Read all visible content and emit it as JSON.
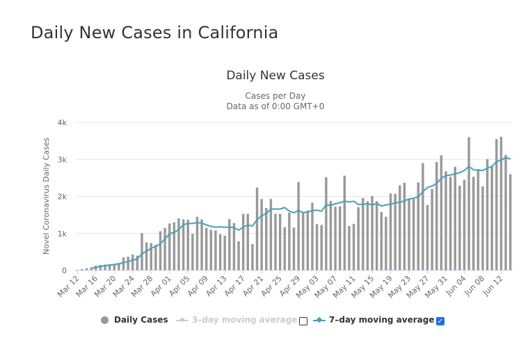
{
  "page": {
    "title": "Daily New Cases in California"
  },
  "chart_data": {
    "type": "bar",
    "title": "Daily New Cases",
    "subtitle_line1": "Cases per Day",
    "subtitle_line2": "Data as of 0:00 GMT+0",
    "ylabel": "Novel Coronavirus Daily Cases",
    "xlabel": "",
    "ylim": [
      0,
      4000
    ],
    "yticks": [
      0,
      1000,
      2000,
      3000,
      4000
    ],
    "ytick_labels": [
      "0",
      "1k",
      "2k",
      "3k",
      "4k"
    ],
    "categories": [
      "Mar 12",
      "Mar 13",
      "Mar 14",
      "Mar 15",
      "Mar 16",
      "Mar 17",
      "Mar 18",
      "Mar 19",
      "Mar 20",
      "Mar 21",
      "Mar 22",
      "Mar 23",
      "Mar 24",
      "Mar 25",
      "Mar 26",
      "Mar 27",
      "Mar 28",
      "Mar 29",
      "Mar 30",
      "Mar 31",
      "Apr 01",
      "Apr 02",
      "Apr 03",
      "Apr 04",
      "Apr 05",
      "Apr 06",
      "Apr 07",
      "Apr 08",
      "Apr 09",
      "Apr 10",
      "Apr 11",
      "Apr 12",
      "Apr 13",
      "Apr 14",
      "Apr 15",
      "Apr 16",
      "Apr 17",
      "Apr 18",
      "Apr 19",
      "Apr 20",
      "Apr 21",
      "Apr 22",
      "Apr 23",
      "Apr 24",
      "Apr 25",
      "Apr 26",
      "Apr 27",
      "Apr 28",
      "Apr 29",
      "Apr 30",
      "May 01",
      "May 02",
      "May 03",
      "May 04",
      "May 05",
      "May 06",
      "May 07",
      "May 08",
      "May 09",
      "May 10",
      "May 11",
      "May 12",
      "May 13",
      "May 14",
      "May 15",
      "May 16",
      "May 17",
      "May 18",
      "May 19",
      "May 20",
      "May 21",
      "May 22",
      "May 23",
      "May 24",
      "May 25",
      "May 26",
      "May 27",
      "May 28",
      "May 29",
      "May 30",
      "May 31",
      "Jun 01",
      "Jun 02",
      "Jun 03",
      "Jun 04",
      "Jun 05",
      "Jun 06",
      "Jun 07",
      "Jun 08",
      "Jun 09",
      "Jun 10",
      "Jun 11",
      "Jun 12",
      "Jun 13",
      "Jun 14"
    ],
    "xtick_labels": [
      "Mar 12",
      "Mar 16",
      "Mar 20",
      "Mar 24",
      "Mar 28",
      "Apr 01",
      "Apr 05",
      "Apr 09",
      "Apr 13",
      "Apr 17",
      "Apr 21",
      "Apr 25",
      "Apr 29",
      "May 03",
      "May 07",
      "May 11",
      "May 15",
      "May 19",
      "May 23",
      "May 27",
      "May 31",
      "Jun 04",
      "Jun 08",
      "Jun 12"
    ],
    "series": [
      {
        "name": "Daily Cases",
        "type": "bar",
        "color": "#999999",
        "visible": true,
        "values": [
          20,
          40,
          60,
          80,
          130,
          150,
          160,
          170,
          180,
          200,
          350,
          370,
          430,
          400,
          1010,
          760,
          740,
          690,
          1060,
          1150,
          1270,
          1300,
          1410,
          1380,
          1370,
          990,
          1450,
          1380,
          1150,
          1100,
          1080,
          980,
          940,
          1390,
          1280,
          790,
          1530,
          1530,
          710,
          2240,
          1930,
          1690,
          1930,
          1530,
          1530,
          1170,
          1560,
          1160,
          2390,
          1550,
          1620,
          1830,
          1250,
          1230,
          2520,
          1880,
          1720,
          1730,
          2560,
          1200,
          1260,
          1710,
          1960,
          1870,
          2010,
          1870,
          1580,
          1450,
          2080,
          2070,
          2300,
          2370,
          1940,
          1930,
          2380,
          2900,
          1770,
          2200,
          2930,
          3110,
          2680,
          2530,
          2800,
          2290,
          2450,
          3600,
          2530,
          2740,
          2270,
          3010,
          2830,
          3550,
          3610,
          3120,
          2600
        ]
      },
      {
        "name": "3-day moving average",
        "type": "line",
        "color": "#cccccc",
        "visible": false
      },
      {
        "name": "7-day moving average",
        "type": "line",
        "color": "#3ca5c2",
        "visible": true,
        "values": [
          null,
          null,
          null,
          60,
          85,
          110,
          130,
          145,
          160,
          180,
          210,
          240,
          280,
          310,
          450,
          520,
          600,
          650,
          720,
          850,
          990,
          1030,
          1100,
          1240,
          1270,
          1270,
          1290,
          1280,
          1230,
          1190,
          1170,
          1180,
          1170,
          1170,
          1160,
          1090,
          1170,
          1230,
          1200,
          1370,
          1480,
          1540,
          1660,
          1660,
          1660,
          1700,
          1600,
          1560,
          1620,
          1560,
          1580,
          1620,
          1630,
          1600,
          1770,
          1760,
          1800,
          1830,
          1870,
          1850,
          1870,
          1780,
          1790,
          1800,
          1770,
          1810,
          1740,
          1770,
          1790,
          1830,
          1840,
          1880,
          1930,
          1950,
          1990,
          2130,
          2240,
          2280,
          2350,
          2490,
          2560,
          2580,
          2610,
          2640,
          2700,
          2810,
          2720,
          2710,
          2700,
          2760,
          2810,
          2940,
          2980,
          3050,
          3010
        ]
      }
    ],
    "legend": {
      "position": "bottom",
      "items": [
        {
          "label": "Daily Cases",
          "color": "#999999",
          "enabled": true
        },
        {
          "label": "3–day moving average",
          "color": "#cccccc",
          "enabled": false,
          "checkbox": false
        },
        {
          "label": "7–day moving average",
          "color": "#3ca5c2",
          "enabled": true,
          "checkbox": true
        }
      ]
    },
    "grid": true
  }
}
